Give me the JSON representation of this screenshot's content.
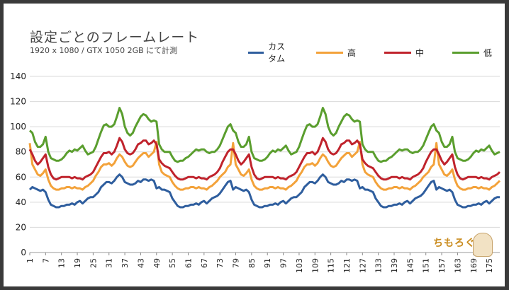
{
  "title": "設定ごとのフレームレート",
  "subtitle": "1920 x 1080 / GTX 1050 2GB にて計測",
  "logo_text": "ちもろぐ",
  "chart_data": {
    "type": "line",
    "xlabel": "",
    "ylabel": "",
    "ylim": [
      0,
      140
    ],
    "yticks": [
      0,
      20,
      40,
      60,
      80,
      100,
      120,
      140
    ],
    "xlim": [
      1,
      179
    ],
    "xticks": [
      1,
      7,
      13,
      19,
      25,
      31,
      37,
      43,
      49,
      55,
      61,
      67,
      73,
      79,
      85,
      91,
      97,
      103,
      109,
      115,
      121,
      127,
      133,
      139,
      145,
      151,
      157,
      163,
      169,
      175
    ],
    "grid": "horizontal",
    "legend_position": "top",
    "series": [
      {
        "name": "カスタム",
        "color": "#2f5e9e",
        "pattern_values": [
          50,
          52,
          51,
          50,
          49,
          50,
          48,
          42,
          38,
          37,
          36,
          36,
          37,
          37,
          38,
          38,
          39,
          38,
          40,
          41,
          39,
          41,
          43,
          44,
          44,
          46,
          48,
          52,
          54,
          56,
          56,
          55,
          57,
          60,
          62,
          60,
          56,
          55,
          54,
          54,
          55,
          57,
          56,
          58,
          58,
          57,
          58,
          57,
          51,
          52,
          50,
          50,
          49,
          48,
          43,
          40,
          37,
          36,
          36,
          37,
          37,
          38,
          38,
          39,
          38,
          40,
          41,
          39,
          41,
          43,
          44,
          45,
          47,
          50,
          53,
          56,
          57
        ]
      },
      {
        "name": "高",
        "color": "#f3a23a",
        "pattern_values": [
          87,
          70,
          66,
          62,
          61,
          63,
          66,
          58,
          53,
          51,
          50,
          50,
          51,
          51,
          52,
          52,
          51,
          52,
          51,
          51,
          50,
          52,
          53,
          55,
          57,
          61,
          64,
          68,
          70,
          70,
          71,
          69,
          71,
          75,
          78,
          76,
          72,
          69,
          68,
          69,
          72,
          75,
          77,
          79,
          79,
          76,
          78,
          80,
          88,
          70,
          64,
          62,
          61,
          60,
          56,
          53,
          51,
          50,
          50,
          51,
          51,
          52,
          52,
          51,
          52,
          51,
          51,
          50,
          52,
          53,
          55,
          57,
          60,
          62,
          64,
          68,
          70
        ]
      },
      {
        "name": "中",
        "color": "#c0232c",
        "pattern_values": [
          82,
          78,
          73,
          70,
          72,
          75,
          78,
          68,
          62,
          59,
          58,
          59,
          60,
          60,
          60,
          60,
          59,
          60,
          59,
          59,
          58,
          60,
          61,
          62,
          64,
          68,
          72,
          76,
          79,
          79,
          80,
          78,
          80,
          85,
          91,
          88,
          82,
          79,
          78,
          79,
          82,
          86,
          87,
          89,
          89,
          86,
          87,
          89,
          86,
          74,
          71,
          69,
          68,
          67,
          64,
          61,
          59,
          58,
          58,
          59,
          60,
          60,
          60,
          59,
          60,
          59,
          59,
          58,
          60,
          61,
          62,
          64,
          67,
          72,
          76,
          80,
          82
        ]
      },
      {
        "name": "低",
        "color": "#5a9e2e",
        "pattern_values": [
          97,
          95,
          88,
          84,
          84,
          86,
          92,
          80,
          75,
          74,
          73,
          73,
          74,
          76,
          79,
          81,
          80,
          82,
          81,
          83,
          85,
          81,
          78,
          79,
          80,
          84,
          90,
          96,
          101,
          102,
          100,
          100,
          102,
          108,
          115,
          110,
          100,
          95,
          93,
          95,
          100,
          104,
          108,
          110,
          109,
          106,
          104,
          105,
          104,
          86,
          82,
          80,
          80,
          80,
          76,
          73,
          72,
          73,
          73,
          75,
          76,
          78,
          80,
          82,
          81,
          82,
          82,
          80,
          79,
          80,
          80,
          82,
          85,
          90,
          95,
          100,
          102
        ]
      }
    ]
  }
}
